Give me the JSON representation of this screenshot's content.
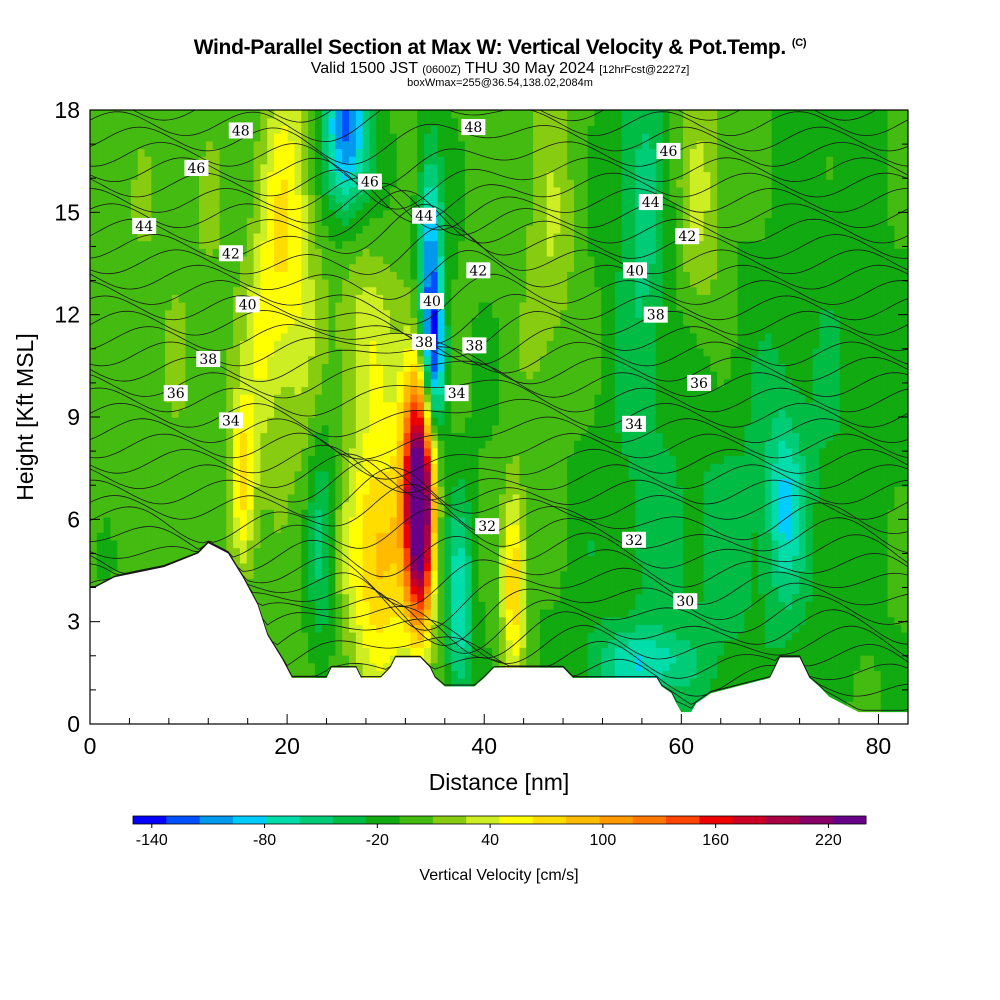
{
  "header": {
    "title": "Wind-Parallel Section at Max W: Vertical Velocity & Pot.Temp.",
    "copyright": "(C)",
    "valid_prefix": "Valid 1500 JST",
    "valid_utc": "(0600Z)",
    "valid_date": "THU 30 May 2024",
    "forecast": "[12hrFcst@2227z]",
    "box_info": "boxWmax=255@36.54,138.02,2084m"
  },
  "chart_data": {
    "type": "heatmap",
    "xlabel": "Distance [nm]",
    "ylabel": "Height [Kft MSL]",
    "xlim": [
      0,
      83
    ],
    "ylim": [
      0,
      18
    ],
    "x_ticks": [
      "0",
      "20",
      "40",
      "60",
      "80"
    ],
    "y_ticks": [
      "0",
      "3",
      "6",
      "9",
      "12",
      "15",
      "18"
    ],
    "colorbar": {
      "label": "Vertical Velocity [cm/s]",
      "tick_labels": [
        "-140",
        "-80",
        "-20",
        "40",
        "100",
        "160",
        "220"
      ],
      "tick_values": [
        -140,
        -80,
        -20,
        40,
        100,
        160,
        220
      ],
      "min": -150,
      "max": 240,
      "colors": [
        "#0000ff",
        "#0050ff",
        "#0099ee",
        "#00ccff",
        "#00ddaa",
        "#00cc77",
        "#00bb44",
        "#11aa11",
        "#44bb11",
        "#88cc11",
        "#ccee22",
        "#ffff00",
        "#ffdd00",
        "#ffbb00",
        "#ff9900",
        "#ff7700",
        "#ff4400",
        "#ee0000",
        "#cc0022",
        "#aa0044",
        "#880066",
        "#660088"
      ]
    },
    "terrain_profile_kft": [
      [
        0,
        4.0
      ],
      [
        0.5,
        4.0
      ],
      [
        2.5,
        4.3
      ],
      [
        7.5,
        4.6
      ],
      [
        11,
        5.0
      ],
      [
        12,
        5.3
      ],
      [
        14,
        5.0
      ],
      [
        15.5,
        4.3
      ],
      [
        17,
        3.5
      ],
      [
        18,
        2.6
      ],
      [
        19.5,
        1.9
      ],
      [
        20.5,
        1.35
      ],
      [
        24,
        1.35
      ],
      [
        24.5,
        1.65
      ],
      [
        27,
        1.65
      ],
      [
        27.5,
        1.35
      ],
      [
        29.5,
        1.35
      ],
      [
        30.5,
        1.65
      ],
      [
        31,
        1.95
      ],
      [
        33.5,
        1.95
      ],
      [
        34.5,
        1.65
      ],
      [
        35,
        1.35
      ],
      [
        36,
        1.1
      ],
      [
        39,
        1.1
      ],
      [
        40,
        1.35
      ],
      [
        41,
        1.65
      ],
      [
        48,
        1.65
      ],
      [
        49,
        1.35
      ],
      [
        57.5,
        1.35
      ],
      [
        58,
        1.1
      ],
      [
        59,
        0.9
      ],
      [
        59.5,
        0.6
      ],
      [
        60,
        0.35
      ],
      [
        61,
        0.35
      ],
      [
        61.5,
        0.6
      ],
      [
        63,
        0.9
      ],
      [
        69,
        1.35
      ],
      [
        69.5,
        1.65
      ],
      [
        70,
        1.95
      ],
      [
        72,
        1.95
      ],
      [
        73,
        1.35
      ],
      [
        74,
        1.1
      ],
      [
        75,
        0.8
      ],
      [
        78,
        0.35
      ],
      [
        83,
        0.35
      ]
    ],
    "wind_features": [
      {
        "x": 15.5,
        "z": 7.0,
        "sx": 0.9,
        "sz": 1.8,
        "w": 75
      },
      {
        "x": 17.5,
        "z": 11.5,
        "sx": 1.2,
        "sz": 2.5,
        "w": 40
      },
      {
        "x": 19.5,
        "z": 15.0,
        "sx": 1.4,
        "sz": 3.5,
        "w": 45
      },
      {
        "x": 29.5,
        "z": 5.0,
        "sx": 2.4,
        "sz": 2.8,
        "w": 95
      },
      {
        "x": 28.0,
        "z": 11.5,
        "sx": 2.0,
        "sz": 2.0,
        "w": 40
      },
      {
        "x": 33.5,
        "z": 6.2,
        "sx": 0.95,
        "sz": 2.3,
        "w": 230
      },
      {
        "x": 33.0,
        "z": 8.5,
        "sx": 1.2,
        "sz": 2.5,
        "w": 80
      },
      {
        "x": 43.0,
        "z": 4.2,
        "sx": 0.9,
        "sz": 2.0,
        "w": 90
      },
      {
        "x": 21.5,
        "z": 13.0,
        "sx": 1.6,
        "sz": 4.0,
        "w": 30
      },
      {
        "x": 26.0,
        "z": 17.5,
        "sx": 1.6,
        "sz": 1.8,
        "w": -120
      },
      {
        "x": 34.5,
        "z": 13.0,
        "sx": 0.9,
        "sz": 2.5,
        "w": -115
      },
      {
        "x": 35.0,
        "z": 10.5,
        "sx": 0.8,
        "sz": 1.4,
        "w": -80
      },
      {
        "x": 37.5,
        "z": 3.5,
        "sx": 1.0,
        "sz": 2.2,
        "w": -70
      },
      {
        "x": 70.5,
        "z": 6.5,
        "sx": 1.3,
        "sz": 2.0,
        "w": -55
      },
      {
        "x": 56.0,
        "z": 1.8,
        "sx": 3.5,
        "sz": 0.7,
        "w": -60
      },
      {
        "x": 56.0,
        "z": 15.0,
        "sx": 2.0,
        "sz": 4.0,
        "w": -45
      },
      {
        "x": 46.5,
        "z": 14.0,
        "sx": 2.0,
        "sz": 4.0,
        "w": 30
      },
      {
        "x": 62.0,
        "z": 15.5,
        "sx": 2.0,
        "sz": 3.0,
        "w": 35
      },
      {
        "x": 10.0,
        "z": 13.0,
        "sx": 8.0,
        "sz": 6.0,
        "w": 12
      },
      {
        "x": 23.5,
        "z": 5.5,
        "sx": 1.0,
        "sz": 2.5,
        "w": -45
      },
      {
        "x": 62.0,
        "z": 5.0,
        "sx": 10.0,
        "sz": 4.0,
        "w": -25
      },
      {
        "x": 75.0,
        "z": 12.0,
        "sx": 6.0,
        "sz": 5.0,
        "w": -15
      }
    ],
    "theta_labels": [
      {
        "text": "48",
        "x": 15.3,
        "z": 17.4
      },
      {
        "text": "46",
        "x": 10.8,
        "z": 16.3
      },
      {
        "text": "44",
        "x": 5.5,
        "z": 14.6
      },
      {
        "text": "42",
        "x": 14.3,
        "z": 13.8
      },
      {
        "text": "40",
        "x": 16.0,
        "z": 12.3
      },
      {
        "text": "38",
        "x": 12.0,
        "z": 10.7
      },
      {
        "text": "36",
        "x": 8.7,
        "z": 9.7
      },
      {
        "text": "34",
        "x": 14.3,
        "z": 8.9
      },
      {
        "text": "48",
        "x": 38.9,
        "z": 17.5
      },
      {
        "text": "46",
        "x": 28.4,
        "z": 15.9
      },
      {
        "text": "44",
        "x": 33.9,
        "z": 14.9
      },
      {
        "text": "42",
        "x": 39.4,
        "z": 13.3
      },
      {
        "text": "40",
        "x": 34.7,
        "z": 12.4
      },
      {
        "text": "38",
        "x": 33.9,
        "z": 11.2
      },
      {
        "text": "38",
        "x": 39.0,
        "z": 11.1
      },
      {
        "text": "34",
        "x": 37.2,
        "z": 9.7
      },
      {
        "text": "32",
        "x": 40.3,
        "z": 5.8
      },
      {
        "text": "46",
        "x": 58.7,
        "z": 16.8
      },
      {
        "text": "44",
        "x": 56.9,
        "z": 15.3
      },
      {
        "text": "42",
        "x": 60.6,
        "z": 14.3
      },
      {
        "text": "40",
        "x": 55.3,
        "z": 13.3
      },
      {
        "text": "38",
        "x": 57.4,
        "z": 12.0
      },
      {
        "text": "36",
        "x": 61.8,
        "z": 10.0
      },
      {
        "text": "34",
        "x": 55.2,
        "z": 8.8
      },
      {
        "text": "32",
        "x": 55.2,
        "z": 5.4
      },
      {
        "text": "30",
        "x": 60.4,
        "z": 3.6
      }
    ]
  }
}
